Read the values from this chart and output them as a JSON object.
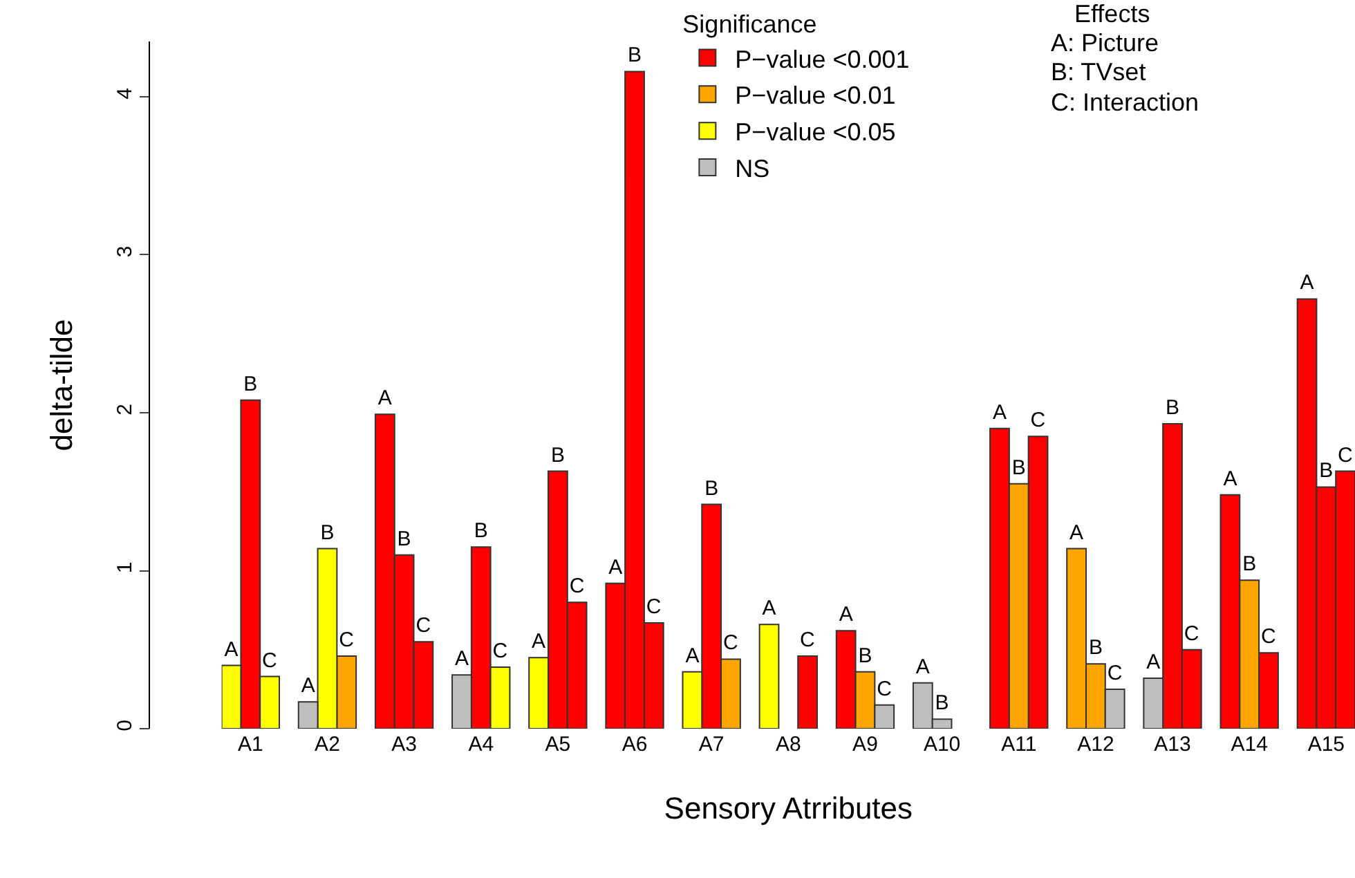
{
  "chart_data": {
    "type": "bar",
    "xlabel": "Sensory Atrributes",
    "ylabel": "delta-tilde",
    "legend_title": "Significance",
    "legend": "top",
    "categories": [
      null,
      "A1",
      null,
      null,
      null,
      "A2",
      null,
      null,
      null,
      "A3",
      null,
      null,
      null,
      "A4",
      null,
      null,
      null,
      "A5",
      null,
      null,
      null,
      "A6",
      null,
      null,
      null,
      "A7",
      null,
      null,
      null,
      "A8",
      null,
      null,
      null,
      "A9",
      null,
      null,
      null,
      "A10",
      null,
      null,
      null,
      "A11",
      null,
      null,
      null,
      "A12",
      null,
      null,
      null,
      "A13",
      null,
      null,
      null,
      "A14",
      null,
      null,
      null,
      "A15",
      null
    ],
    "ylim": [
      0,
      4.35
    ],
    "yticks": [
      0,
      1,
      2,
      3,
      4
    ],
    "grid": false,
    "series": [
      {
        "name": "P−value <0.001",
        "color": "#ff0000",
        "values": [
          null,
          2.08,
          null,
          null,
          null,
          null,
          null,
          null,
          1.99,
          1.1,
          0.55,
          null,
          null,
          1.15,
          null,
          null,
          null,
          1.63,
          0.8,
          null,
          0.92,
          4.16,
          0.67,
          null,
          null,
          1.42,
          null,
          null,
          null,
          null,
          0.46,
          null,
          0.62,
          null,
          null,
          null,
          null,
          null,
          null,
          null,
          1.9,
          null,
          1.85,
          null,
          null,
          null,
          null,
          null,
          null,
          1.93,
          0.5,
          null,
          1.48,
          null,
          0.48,
          null,
          2.72,
          1.53,
          1.63
        ],
        "value_labels": [
          null,
          "B",
          null,
          null,
          null,
          null,
          null,
          null,
          "A",
          "B",
          "C",
          null,
          null,
          "B",
          null,
          null,
          null,
          "B",
          "C",
          null,
          "A",
          "B",
          "C",
          null,
          null,
          "B",
          null,
          null,
          null,
          null,
          "C",
          null,
          "A",
          null,
          null,
          null,
          null,
          null,
          null,
          null,
          "A",
          null,
          "C",
          null,
          null,
          null,
          null,
          null,
          null,
          "B",
          "C",
          null,
          "A",
          null,
          "C",
          null,
          "A",
          "B",
          "C"
        ]
      },
      {
        "name": "P−value <0.01",
        "color": "#ffa500",
        "values": [
          null,
          null,
          null,
          null,
          null,
          null,
          0.46,
          null,
          null,
          null,
          null,
          null,
          null,
          null,
          null,
          null,
          null,
          null,
          null,
          null,
          null,
          null,
          null,
          null,
          null,
          null,
          0.44,
          null,
          null,
          null,
          null,
          null,
          null,
          0.36,
          null,
          null,
          null,
          null,
          null,
          null,
          null,
          1.55,
          null,
          null,
          1.14,
          0.41,
          null,
          null,
          null,
          null,
          null,
          null,
          null,
          0.94,
          null,
          null,
          null,
          null,
          null
        ],
        "value_labels": [
          null,
          null,
          null,
          null,
          null,
          null,
          "C",
          null,
          null,
          null,
          null,
          null,
          null,
          null,
          null,
          null,
          null,
          null,
          null,
          null,
          null,
          null,
          null,
          null,
          null,
          null,
          "C",
          null,
          null,
          null,
          null,
          null,
          null,
          "B",
          null,
          null,
          null,
          null,
          null,
          null,
          null,
          "B",
          null,
          null,
          "A",
          "B",
          null,
          null,
          null,
          null,
          null,
          null,
          null,
          "B",
          null,
          null,
          null,
          null,
          null
        ]
      },
      {
        "name": "P−value <0.05",
        "color": "#ffff00",
        "values": [
          0.4,
          null,
          0.33,
          null,
          null,
          1.14,
          null,
          null,
          null,
          null,
          null,
          null,
          null,
          null,
          0.39,
          null,
          0.45,
          null,
          null,
          null,
          null,
          null,
          null,
          null,
          0.36,
          null,
          null,
          null,
          0.66,
          null,
          null,
          null,
          null,
          null,
          null,
          null,
          null,
          null,
          null,
          null,
          null,
          null,
          null,
          null,
          null,
          null,
          null,
          null,
          null,
          null,
          null,
          null,
          null,
          null,
          null,
          null,
          null,
          null,
          null
        ],
        "value_labels": [
          "A",
          null,
          "C",
          null,
          null,
          "B",
          null,
          null,
          null,
          null,
          null,
          null,
          null,
          null,
          "C",
          null,
          "A",
          null,
          null,
          null,
          null,
          null,
          null,
          null,
          "A",
          null,
          null,
          null,
          "A",
          null,
          null,
          null,
          null,
          null,
          null,
          null,
          null,
          null,
          null,
          null,
          null,
          null,
          null,
          null,
          null,
          null,
          null,
          null,
          null,
          null,
          null,
          null,
          null,
          null,
          null,
          null,
          null,
          null,
          null
        ]
      },
      {
        "name": "NS",
        "color": "#bebebe",
        "values": [
          null,
          null,
          null,
          null,
          0.17,
          null,
          null,
          null,
          null,
          null,
          null,
          null,
          0.34,
          null,
          null,
          null,
          null,
          null,
          null,
          null,
          null,
          null,
          null,
          null,
          null,
          null,
          null,
          null,
          null,
          null,
          null,
          null,
          null,
          null,
          0.15,
          null,
          0.29,
          0.06,
          null,
          null,
          null,
          null,
          null,
          null,
          null,
          null,
          0.25,
          null,
          0.32,
          null,
          null,
          null,
          null,
          null,
          null,
          null,
          null,
          null,
          null
        ],
        "value_labels": [
          null,
          null,
          null,
          null,
          "A",
          null,
          null,
          null,
          null,
          null,
          null,
          null,
          "A",
          null,
          null,
          null,
          null,
          null,
          null,
          null,
          null,
          null,
          null,
          null,
          null,
          null,
          null,
          null,
          null,
          null,
          null,
          null,
          null,
          null,
          "C",
          null,
          "A",
          "B",
          null,
          null,
          null,
          null,
          null,
          null,
          null,
          null,
          "C",
          null,
          "A",
          null,
          null,
          null,
          null,
          null,
          null,
          null,
          null,
          null,
          null
        ]
      }
    ],
    "annotations": [
      "Effects",
      "A: Picture",
      "B: TVset",
      "C: Interaction"
    ]
  }
}
